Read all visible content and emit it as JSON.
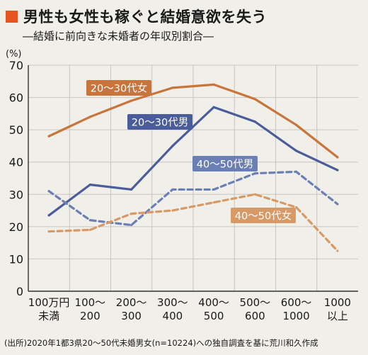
{
  "header": {
    "title": "男性も女性も稼ぐと結婚意欲を失う",
    "subtitle": "―結婚に前向きな未婚者の年収別割合―"
  },
  "colors": {
    "accent": "#e8541f",
    "orange": "#c8743a",
    "blue": "#4a5c9a",
    "orange_light": "#d79a66",
    "blue_light": "#6b7fb5"
  },
  "chart_data": {
    "type": "line",
    "ylabel": "(%)",
    "ylim": [
      0,
      70
    ],
    "yticks": [
      0,
      10,
      20,
      30,
      40,
      50,
      60,
      70
    ],
    "categories": [
      [
        "100万円",
        "未満"
      ],
      [
        "100〜",
        "200"
      ],
      [
        "200〜",
        "300"
      ],
      [
        "300〜",
        "400"
      ],
      [
        "400〜",
        "500"
      ],
      [
        "500〜",
        "600"
      ],
      [
        "600〜",
        "1000"
      ],
      [
        "1000",
        "以上"
      ]
    ],
    "grid": true,
    "series": [
      {
        "name": "20〜30代女",
        "style": "solid",
        "color": "#c8743a",
        "values": [
          48,
          54,
          59,
          63,
          64,
          59.5,
          51.5,
          41.5
        ]
      },
      {
        "name": "20〜30代男",
        "style": "solid",
        "color": "#4a5c9a",
        "values": [
          23.5,
          33,
          31.5,
          45,
          57,
          52.5,
          43.5,
          37.5
        ]
      },
      {
        "name": "40〜50代男",
        "style": "dashed",
        "color": "#6b7fb5",
        "values": [
          31,
          22,
          20.5,
          31.5,
          31.5,
          36.5,
          37,
          27
        ]
      },
      {
        "name": "40〜50代女",
        "style": "dashed",
        "color": "#d79a66",
        "values": [
          18.5,
          19,
          24,
          25,
          27.5,
          30,
          26,
          12.5
        ]
      }
    ]
  },
  "footer": {
    "source": "(出所)2020年1都3県20〜50代未婚男女(n=10224)への独自調査を基に荒川和久作成"
  }
}
